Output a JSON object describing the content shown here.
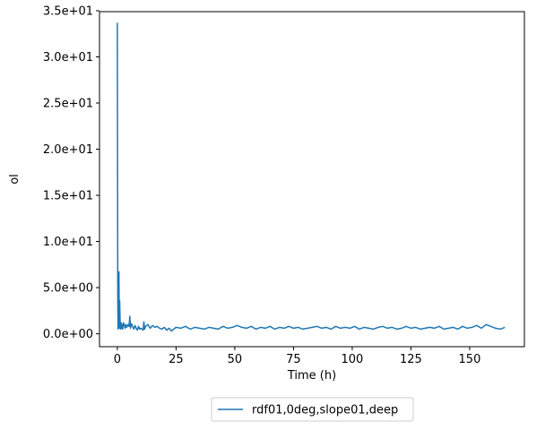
{
  "chart_data": {
    "type": "line",
    "title": "",
    "xlabel": "Time (h)",
    "ylabel": "ol",
    "xlim": [
      -7.6,
      173.3
    ],
    "ylim": [
      -1.4,
      34.9
    ],
    "xticks": [
      0,
      25,
      50,
      75,
      100,
      125,
      150
    ],
    "xtick_labels": [
      "0",
      "25",
      "50",
      "75",
      "100",
      "125",
      "150"
    ],
    "yticks": [
      0,
      5,
      10,
      15,
      20,
      25,
      30,
      35
    ],
    "ytick_labels": [
      "0.0e+00",
      "5.0e+00",
      "1.0e+01",
      "1.5e+01",
      "2.0e+01",
      "2.5e+01",
      "3.0e+01",
      "3.5e+01"
    ],
    "grid": false,
    "legend_position": "below plot, centered",
    "color": "#1f77b4",
    "series": [
      {
        "name": "rdf01,0deg,slope01,deep",
        "x": [
          0,
          0.1,
          0.2,
          0.3,
          0.4,
          0.5,
          0.6,
          0.7,
          0.8,
          0.9,
          1.0,
          1.2,
          1.4,
          1.6,
          1.8,
          2.0,
          2.3,
          2.6,
          3.0,
          3.3,
          3.6,
          4.0,
          4.5,
          5.0,
          5.3,
          5.6,
          6.0,
          6.5,
          7.0,
          7.5,
          8.0,
          8.5,
          9.0,
          9.5,
          10.0,
          10.5,
          11.0,
          11.3,
          11.6,
          12.0,
          13.0,
          14.0,
          15.0,
          16.0,
          17.0,
          18.0,
          19.0,
          20.0,
          21.0,
          22.0,
          23.0,
          24.0,
          25.0,
          27.0,
          29.0,
          31.0,
          33.0,
          35.0,
          37.0,
          39.0,
          41.0,
          43.0,
          45.0,
          47.0,
          49.0,
          51.0,
          53.0,
          55.0,
          57.0,
          59.0,
          61.0,
          63.0,
          65.0,
          67.0,
          69.0,
          71.0,
          73.0,
          75.0,
          77.0,
          79.0,
          81.0,
          83.0,
          85.0,
          87.0,
          89.0,
          91.0,
          93.0,
          95.0,
          97.0,
          99.0,
          101.0,
          103.0,
          105.0,
          107.0,
          109.0,
          111.0,
          113.0,
          115.0,
          117.0,
          119.0,
          121.0,
          123.0,
          125.0,
          127.0,
          129.0,
          131.0,
          133.0,
          135.0,
          137.0,
          139.0,
          141.0,
          143.0,
          145.0,
          147.0,
          149.0,
          151.0,
          153.0,
          155.0,
          157.0,
          159.0,
          161.0,
          163.0,
          165.0
        ],
        "y": [
          33.7,
          15.0,
          4.0,
          0.5,
          3.0,
          1.0,
          0.8,
          6.7,
          1.2,
          0.6,
          3.6,
          0.8,
          0.5,
          1.2,
          0.6,
          1.0,
          0.5,
          1.2,
          0.9,
          0.6,
          1.0,
          0.7,
          1.0,
          0.8,
          1.9,
          0.6,
          1.1,
          0.8,
          0.5,
          0.9,
          0.6,
          0.4,
          0.8,
          0.5,
          0.6,
          0.5,
          0.4,
          1.3,
          0.5,
          0.8,
          1.0,
          0.6,
          0.9,
          0.7,
          0.8,
          0.6,
          0.5,
          0.7,
          0.4,
          0.6,
          0.3,
          0.5,
          0.7,
          0.6,
          0.8,
          0.5,
          0.7,
          0.6,
          0.5,
          0.7,
          0.6,
          0.5,
          0.8,
          0.6,
          0.7,
          0.9,
          0.7,
          0.6,
          0.8,
          0.5,
          0.7,
          0.6,
          0.8,
          0.5,
          0.7,
          0.6,
          0.8,
          0.6,
          0.7,
          0.5,
          0.6,
          0.7,
          0.8,
          0.6,
          0.7,
          0.5,
          0.8,
          0.6,
          0.7,
          0.6,
          0.8,
          0.5,
          0.7,
          0.6,
          0.5,
          0.7,
          0.8,
          0.6,
          0.7,
          0.5,
          0.6,
          0.8,
          0.6,
          0.7,
          0.5,
          0.6,
          0.7,
          0.6,
          0.8,
          0.5,
          0.6,
          0.7,
          0.5,
          0.8,
          0.6,
          0.7,
          0.9,
          0.6,
          1.0,
          0.8,
          0.6,
          0.5,
          0.7
        ]
      }
    ]
  }
}
